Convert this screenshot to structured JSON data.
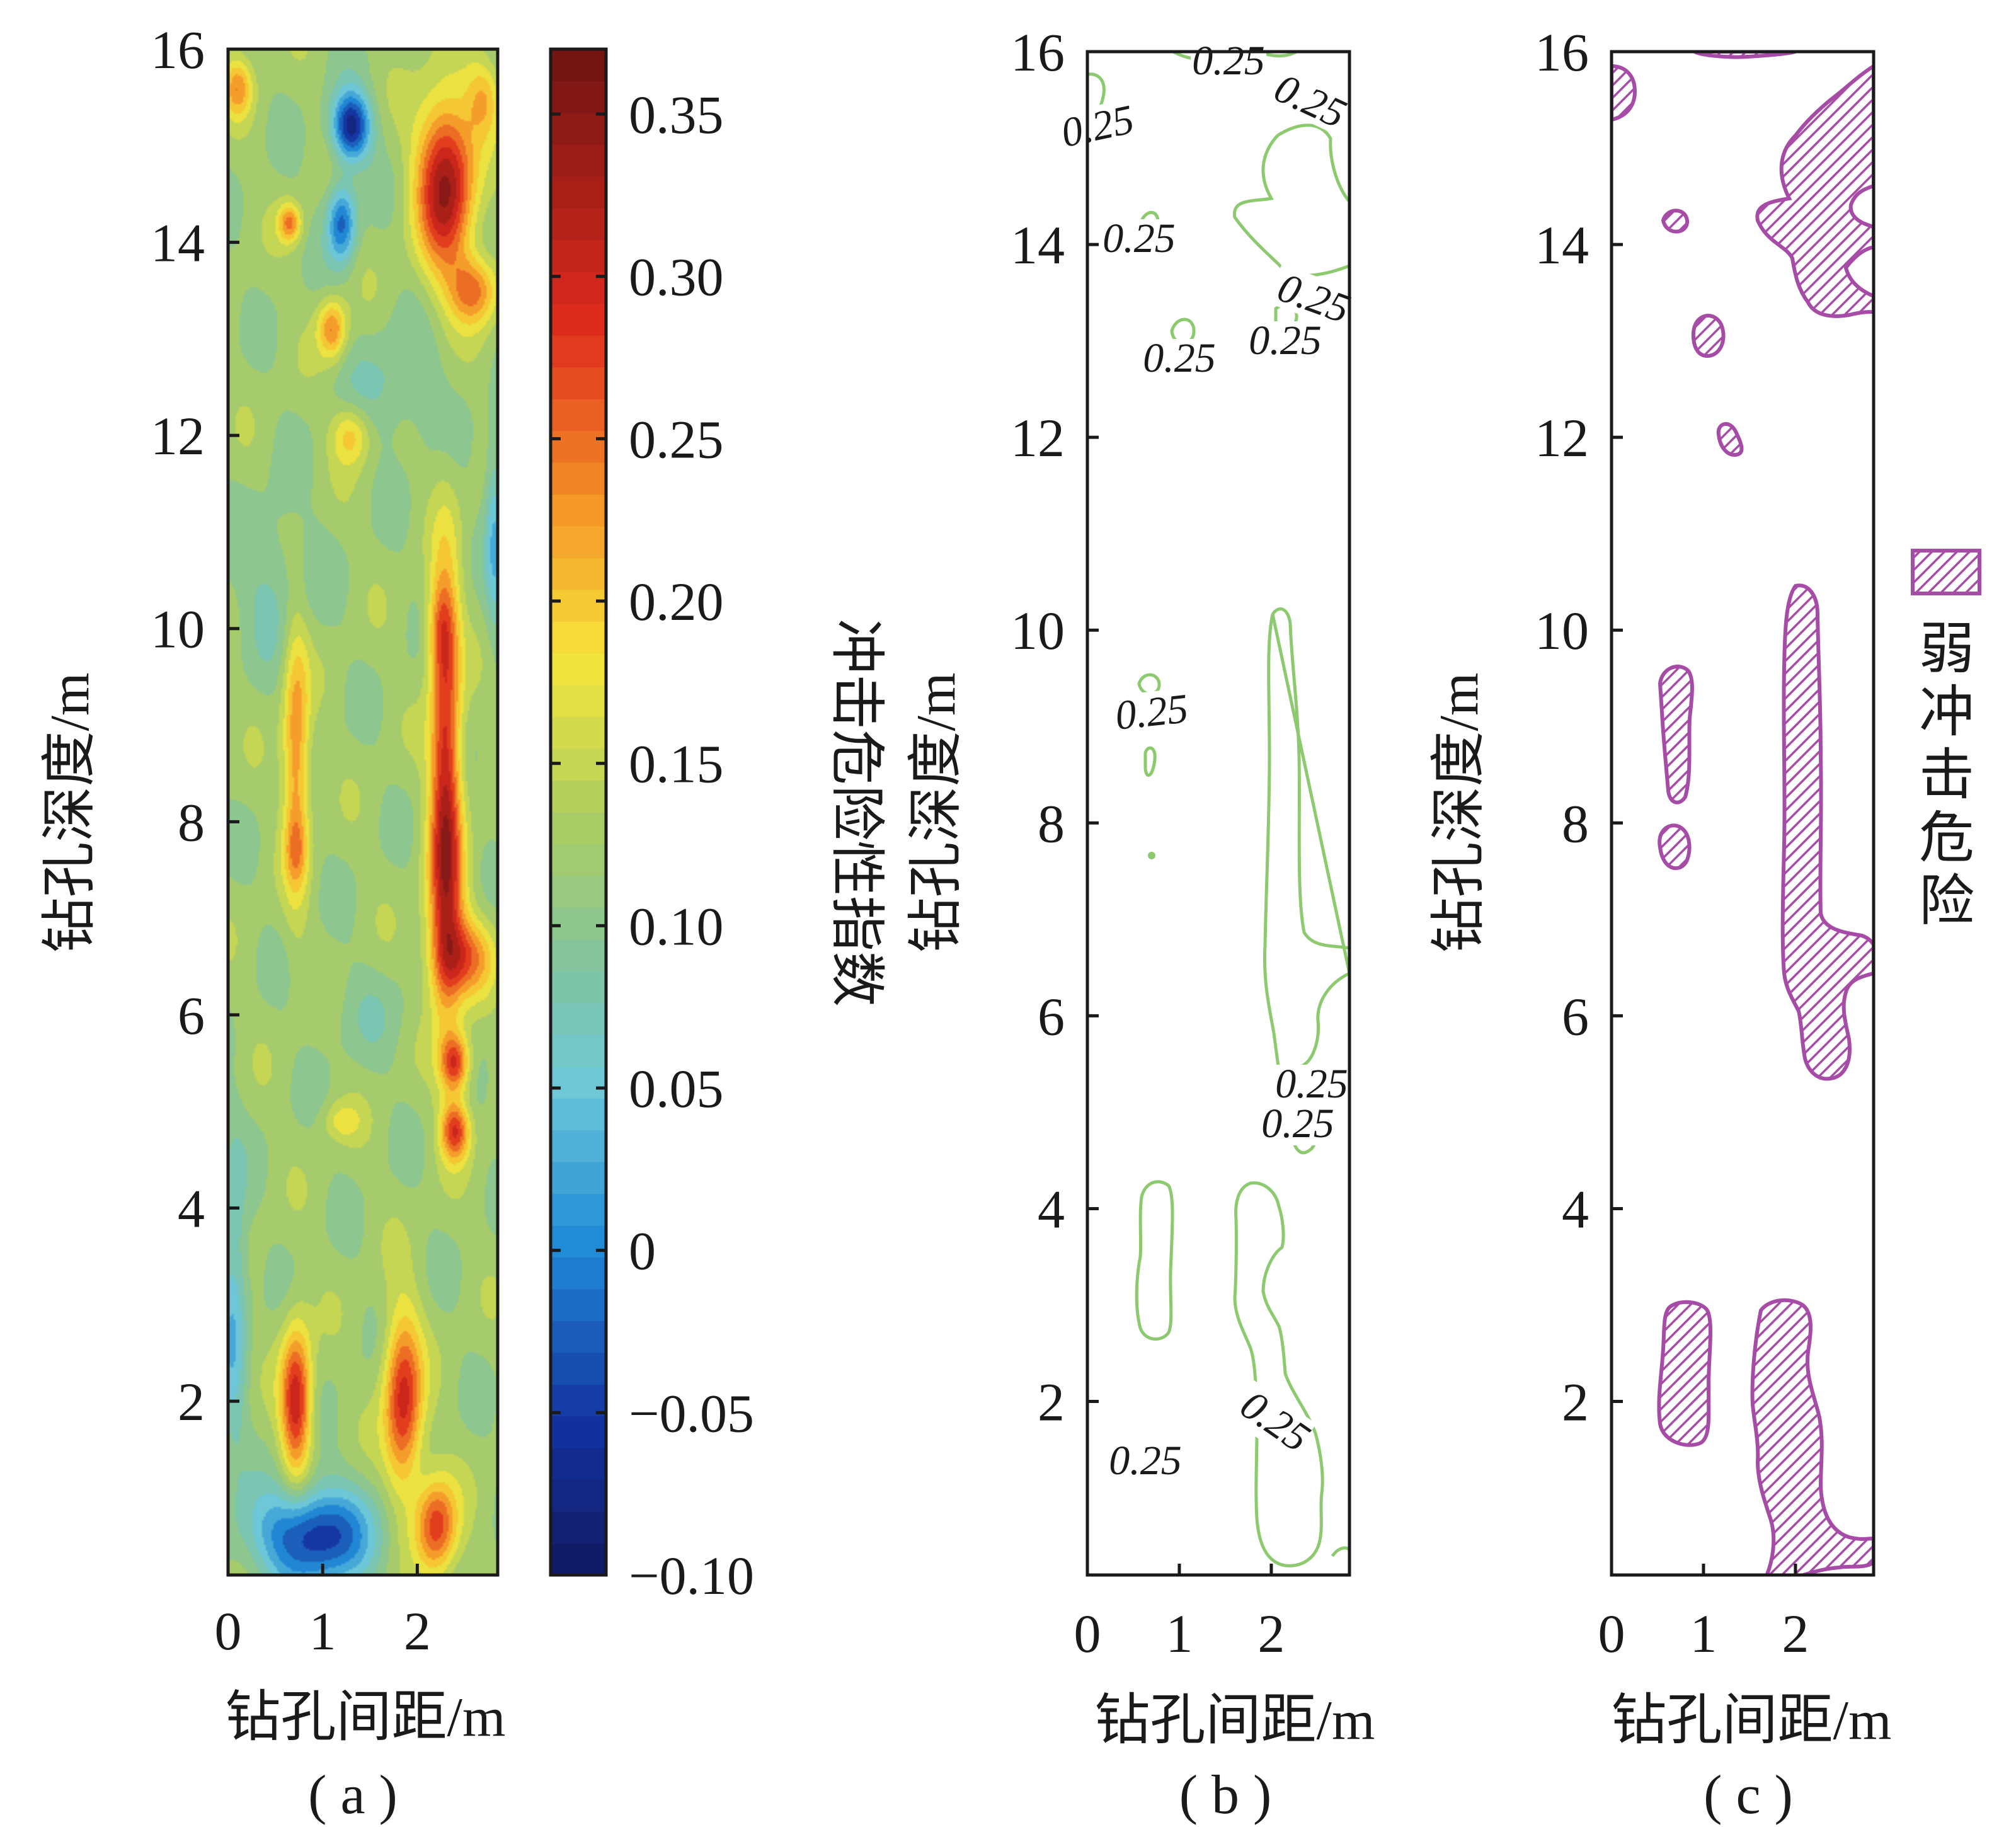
{
  "chart_data": [
    {
      "panel": "a",
      "type": "heatmap",
      "panel_label": "( a )",
      "xlabel": "钻孔间距/m",
      "ylabel": "钻孔深度/m",
      "colorbar_label": "冲击危险性指数",
      "xlim": [
        0,
        2.85
      ],
      "ylim": [
        0.2,
        16
      ],
      "xticks": [
        "0",
        "1",
        "2"
      ],
      "yticks": [
        "2",
        "4",
        "6",
        "8",
        "10",
        "12",
        "14",
        "16"
      ],
      "colorbar_ticks": [
        "−0.10",
        "−0.05",
        "0",
        "0.05",
        "0.10",
        "0.15",
        "0.20",
        "0.25",
        "0.30",
        "0.35"
      ],
      "colorbar_range": [
        -0.1,
        0.37
      ],
      "background_value": 0.12,
      "hotspots": [
        {
          "x": 2.3,
          "y": 8.5,
          "rx": 0.16,
          "ry": 2.1,
          "v": 0.18
        },
        {
          "x": 2.3,
          "y": 7.1,
          "rx": 0.22,
          "ry": 1.1,
          "v": 0.08
        },
        {
          "x": 2.5,
          "y": 6.6,
          "rx": 0.3,
          "ry": 0.4,
          "v": 0.12
        },
        {
          "x": 2.4,
          "y": 5.5,
          "rx": 0.15,
          "ry": 0.3,
          "v": 0.16
        },
        {
          "x": 2.4,
          "y": 4.8,
          "rx": 0.15,
          "ry": 0.3,
          "v": 0.16
        },
        {
          "x": 2.25,
          "y": 10.0,
          "rx": 0.15,
          "ry": 0.5,
          "v": 0.08
        },
        {
          "x": 0.72,
          "y": 8.7,
          "rx": 0.14,
          "ry": 1.4,
          "v": 0.12
        },
        {
          "x": 0.72,
          "y": 7.7,
          "rx": 0.12,
          "ry": 0.35,
          "v": 0.05
        },
        {
          "x": 0.72,
          "y": 2.0,
          "rx": 0.16,
          "ry": 0.75,
          "v": 0.19
        },
        {
          "x": 1.85,
          "y": 2.0,
          "rx": 0.2,
          "ry": 0.9,
          "v": 0.18
        },
        {
          "x": 2.2,
          "y": 0.7,
          "rx": 0.22,
          "ry": 0.5,
          "v": 0.16
        },
        {
          "x": 2.3,
          "y": 14.6,
          "rx": 0.3,
          "ry": 0.9,
          "v": 0.22
        },
        {
          "x": 2.6,
          "y": 13.5,
          "rx": 0.25,
          "ry": 0.35,
          "v": 0.12
        },
        {
          "x": 2.7,
          "y": 15.5,
          "rx": 0.18,
          "ry": 0.4,
          "v": 0.08
        },
        {
          "x": 1.1,
          "y": 13.1,
          "rx": 0.15,
          "ry": 0.3,
          "v": 0.12
        },
        {
          "x": 0.65,
          "y": 14.2,
          "rx": 0.12,
          "ry": 0.2,
          "v": 0.12
        },
        {
          "x": 1.3,
          "y": 12.0,
          "rx": 0.2,
          "ry": 0.3,
          "v": 0.08
        },
        {
          "x": 0.1,
          "y": 15.6,
          "rx": 0.15,
          "ry": 0.3,
          "v": 0.1
        },
        {
          "x": 1.3,
          "y": 15.2,
          "rx": 0.2,
          "ry": 0.35,
          "v": -0.2
        },
        {
          "x": 1.2,
          "y": 14.2,
          "rx": 0.15,
          "ry": 0.4,
          "v": -0.14
        },
        {
          "x": 0.9,
          "y": 0.6,
          "rx": 0.6,
          "ry": 0.5,
          "v": -0.18
        },
        {
          "x": 0.05,
          "y": 3.0,
          "rx": 0.15,
          "ry": 1.5,
          "v": -0.08
        },
        {
          "x": 2.82,
          "y": 11.0,
          "rx": 0.1,
          "ry": 1.0,
          "v": -0.08
        },
        {
          "x": 0.5,
          "y": 10.5,
          "rx": 0.4,
          "ry": 0.8,
          "v": -0.04
        },
        {
          "x": 1.8,
          "y": 12.5,
          "rx": 0.5,
          "ry": 0.6,
          "v": -0.04
        },
        {
          "x": 1.5,
          "y": 6.0,
          "rx": 0.5,
          "ry": 0.5,
          "v": -0.02
        },
        {
          "x": 1.2,
          "y": 4.9,
          "rx": 0.2,
          "ry": 0.2,
          "v": 0.05
        }
      ]
    },
    {
      "panel": "b",
      "type": "contour",
      "panel_label": "( b )",
      "xlabel": "钻孔间距/m",
      "ylabel": "钻孔深度/m",
      "xlim": [
        0,
        2.85
      ],
      "ylim": [
        0.2,
        16
      ],
      "xticks": [
        "0",
        "1",
        "2"
      ],
      "yticks": [
        "2",
        "4",
        "6",
        "8",
        "10",
        "12",
        "14",
        "16"
      ],
      "contour_level": "0.25",
      "line_color": "#8dc96e"
    },
    {
      "panel": "c",
      "type": "contour",
      "panel_label": "( c )",
      "xlabel": "钻孔间距/m",
      "ylabel": "钻孔深度/m",
      "xlim": [
        0,
        2.85
      ],
      "ylim": [
        0.2,
        16
      ],
      "xticks": [
        "0",
        "1",
        "2"
      ],
      "yticks": [
        "2",
        "4",
        "6",
        "8",
        "10",
        "12",
        "14",
        "16"
      ],
      "fill_color": "#a64ca6",
      "legend": {
        "label": "弱冲击危险",
        "chars": [
          "弱",
          "冲",
          "击",
          "危",
          "险"
        ],
        "position": "right"
      }
    }
  ]
}
